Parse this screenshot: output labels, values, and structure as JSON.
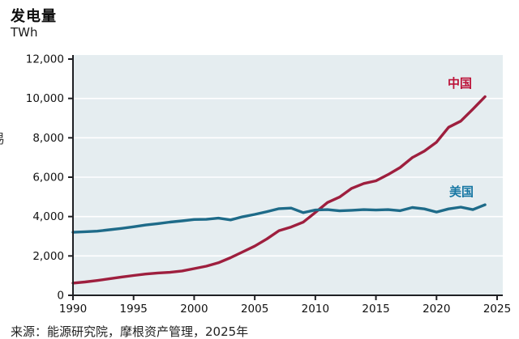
{
  "page": {
    "left_edge_fragment": "易"
  },
  "chart_data": {
    "type": "line",
    "title": "发电量",
    "ylabel": "TWh",
    "xlabel": "",
    "source": "来源：能源研究院，摩根资产管理，2025年",
    "xlim": [
      1990,
      2025
    ],
    "ylim": [
      0,
      12000
    ],
    "grid": "horizontal-white-gridlines",
    "plot_bg": "#e5edf0",
    "axis_color": "#1f2024",
    "legend_position": "inline-labels-near-line-ends",
    "x_tick_labels": [
      "1990",
      "1995",
      "2000",
      "2005",
      "2010",
      "2015",
      "2020",
      "2025"
    ],
    "x_tick_values": [
      1990,
      1995,
      2000,
      2005,
      2010,
      2015,
      2020,
      2025
    ],
    "y_tick_labels": [
      "0",
      "2,000",
      "4,000",
      "6,000",
      "8,000",
      "10,000",
      "12,000"
    ],
    "y_tick_values": [
      0,
      2000,
      4000,
      6000,
      8000,
      10000,
      12000
    ],
    "gridline_values": [
      2000,
      4000,
      6000,
      8000,
      10000
    ],
    "x": [
      1990,
      1991,
      1992,
      1993,
      1994,
      1995,
      1996,
      1997,
      1998,
      1999,
      2000,
      2001,
      2002,
      2003,
      2004,
      2005,
      2006,
      2007,
      2008,
      2009,
      2010,
      2011,
      2012,
      2013,
      2014,
      2015,
      2016,
      2017,
      2018,
      2019,
      2020,
      2021,
      2022,
      2023,
      2024
    ],
    "series": [
      {
        "id": "china",
        "name": "中国",
        "color": "#9e1f3e",
        "label_color": "#bc1238",
        "values": [
          621,
          678,
          754,
          839,
          928,
          1007,
          1081,
          1136,
          1167,
          1239,
          1356,
          1481,
          1654,
          1911,
          2203,
          2500,
          2866,
          3282,
          3467,
          3715,
          4207,
          4713,
          4988,
          5432,
          5680,
          5815,
          6133,
          6495,
          6995,
          7327,
          7779,
          8534,
          8849,
          9456,
          10087
        ]
      },
      {
        "id": "us",
        "name": "美国",
        "color": "#1e6b89",
        "label_color": "#1777a3",
        "values": [
          3203,
          3230,
          3260,
          3330,
          3400,
          3480,
          3570,
          3640,
          3720,
          3780,
          3850,
          3860,
          3920,
          3830,
          3990,
          4110,
          4250,
          4400,
          4430,
          4200,
          4330,
          4350,
          4290,
          4320,
          4350,
          4330,
          4350,
          4300,
          4460,
          4390,
          4230,
          4390,
          4480,
          4350,
          4600
        ]
      }
    ]
  }
}
